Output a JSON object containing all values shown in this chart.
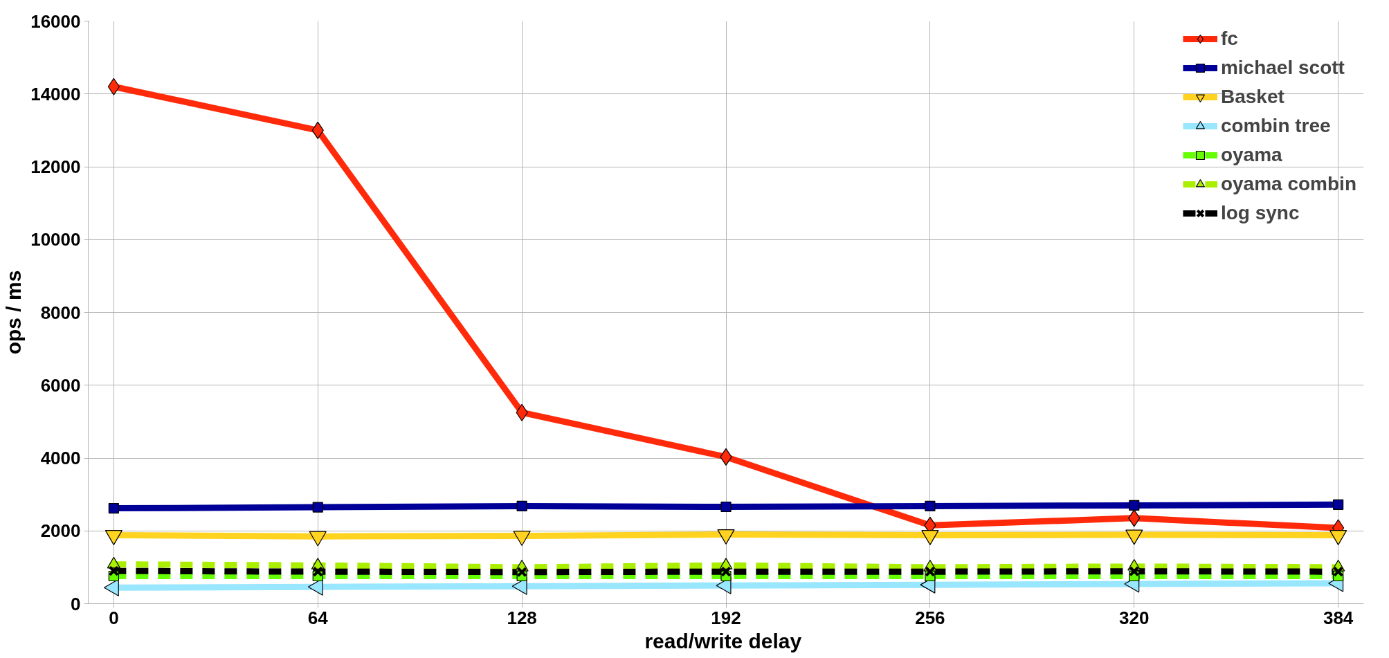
{
  "chart_data": {
    "type": "line",
    "xlabel": "read/write  delay",
    "ylabel": "ops / ms",
    "x": [
      0,
      64,
      128,
      192,
      256,
      320,
      384
    ],
    "xlim": [
      -8,
      392
    ],
    "xticks": [
      0,
      64,
      128,
      192,
      256,
      320,
      384
    ],
    "ylim": [
      0,
      16000
    ],
    "yticks": [
      0,
      2000,
      4000,
      6000,
      8000,
      10000,
      12000,
      14000,
      16000
    ],
    "grid": true,
    "legend": "top right",
    "series": [
      {
        "name": "fc",
        "color": "#ff2a0a",
        "marker": "diamond",
        "line_style": "solid",
        "values": [
          14200,
          13000,
          5250,
          4030,
          2150,
          2350,
          2080
        ]
      },
      {
        "name": "michael scott",
        "color": "#000099",
        "marker": "square",
        "line_style": "solid",
        "values": [
          2620,
          2650,
          2680,
          2660,
          2680,
          2700,
          2720
        ]
      },
      {
        "name": "Basket",
        "color": "#ffd320",
        "marker": "triangle_down",
        "line_style": "solid",
        "values": [
          1880,
          1850,
          1860,
          1900,
          1880,
          1890,
          1880
        ]
      },
      {
        "name": "combin tree",
        "color": "#99e6ff",
        "marker": "triangle_left",
        "line_style": "solid",
        "values": [
          440,
          460,
          480,
          500,
          520,
          540,
          560
        ]
      },
      {
        "name": "oyama",
        "color": "#66ff00",
        "marker": "square",
        "line_style": "dashed",
        "values": [
          760,
          760,
          760,
          760,
          760,
          760,
          760
        ]
      },
      {
        "name": "oyama combin",
        "color": "#aaee00",
        "marker": "triangle",
        "line_style": "dashed",
        "values": [
          1080,
          1050,
          1000,
          1050,
          1000,
          1020,
          1000
        ]
      },
      {
        "name": "log sync",
        "color": "#000000",
        "marker": "cross",
        "line_style": "dashed",
        "values": [
          900,
          880,
          870,
          880,
          880,
          890,
          880
        ]
      }
    ]
  }
}
